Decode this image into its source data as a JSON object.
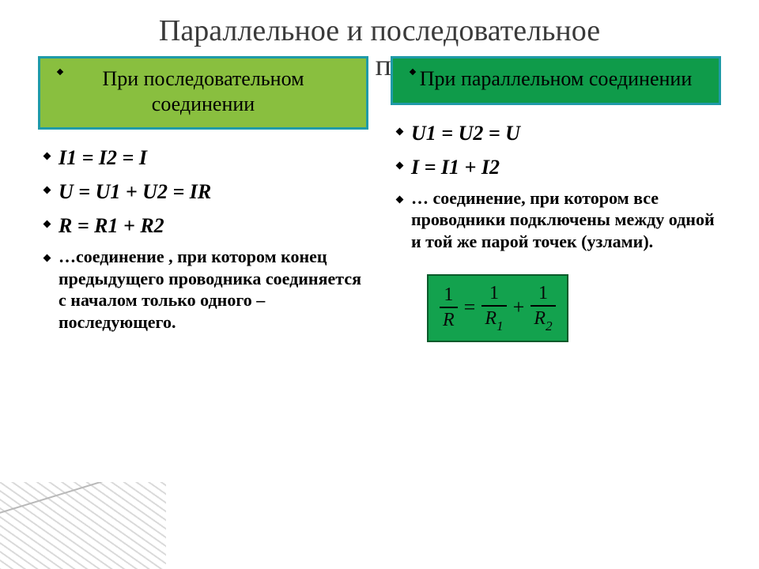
{
  "title": {
    "line1": "Параллельное и последовательное",
    "line2": "соединение проводников"
  },
  "columns": {
    "left": {
      "header": "При последовательном соединении",
      "header_bg": "#89bf3f",
      "header_border": "#1f9aa8",
      "items": [
        {
          "kind": "formula",
          "text": "I1 = I2 = I"
        },
        {
          "kind": "formula",
          "text": "U = U1 + U2 = IR"
        },
        {
          "kind": "formula",
          "text": "R = R1 + R2"
        },
        {
          "kind": "desc",
          "text": "…соединение , при котором конец предыдущего проводника соединяется с началом только одного – последующего."
        }
      ]
    },
    "right": {
      "header": "При параллельном соединении",
      "header_bg": "#0f9b4a",
      "header_border": "#1f9aa8",
      "items": [
        {
          "kind": "formula",
          "text": "U1 = U2 = U"
        },
        {
          "kind": "formula",
          "text": "I = I1 + I2"
        },
        {
          "kind": "desc",
          "text": "… соединение, при котором  все проводники подключены между одной и той же парой точек (узлами)."
        }
      ],
      "fraction_box": {
        "bg": "#13a24e",
        "border": "#0a5a2a",
        "lhs_num": "1",
        "lhs_den": "R",
        "eq": "=",
        "t1_num": "1",
        "t1_den": "R",
        "t1_sub": "1",
        "plus": "+",
        "t2_num": "1",
        "t2_den": "R",
        "t2_sub": "2"
      }
    }
  }
}
